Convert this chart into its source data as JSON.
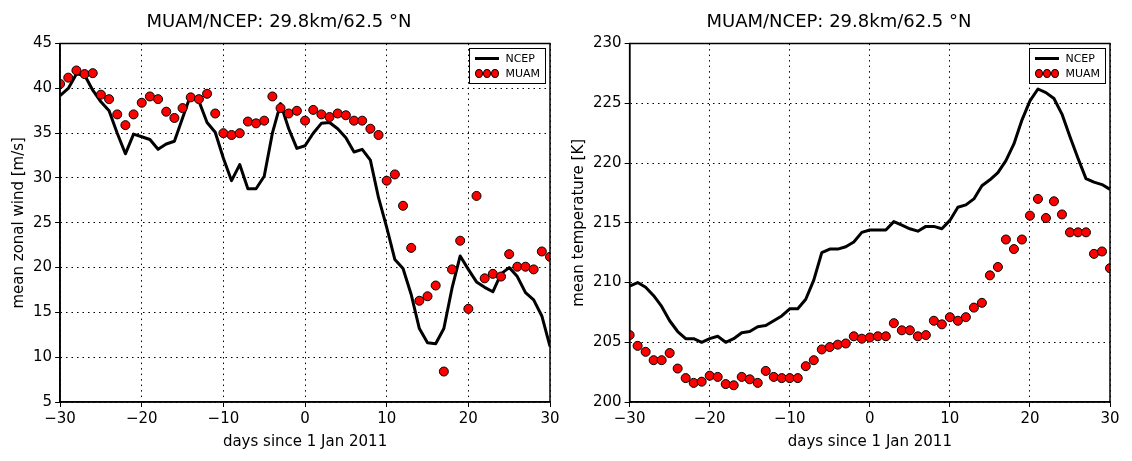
{
  "chart_data": [
    {
      "type": "line",
      "title": "MUAM/NCEP: 29.8km/62.5 °N",
      "xlabel": "days since 1 Jan 2011",
      "ylabel": "mean zonal wind [m/s]",
      "xlim": [
        -30,
        30
      ],
      "xticks": [
        {
          "value": -30,
          "label": "−30"
        },
        {
          "value": -20,
          "label": "−20"
        },
        {
          "value": -10,
          "label": "−10"
        },
        0,
        10,
        20,
        30
      ],
      "ylim": [
        5,
        45
      ],
      "yticks": [
        5,
        10,
        15,
        20,
        25,
        30,
        35,
        40,
        45
      ],
      "grid": true,
      "legend": "top right",
      "x": [
        -30,
        -29,
        -28,
        -27,
        -26,
        -25,
        -24,
        -23,
        -22,
        -21,
        -20,
        -19,
        -18,
        -17,
        -16,
        -15,
        -14,
        -13,
        -12,
        -11,
        -10,
        -9,
        -8,
        -7,
        -6,
        -5,
        -4,
        -3,
        -2,
        -1,
        0,
        1,
        2,
        3,
        4,
        5,
        6,
        7,
        8,
        9,
        10,
        11,
        12,
        13,
        14,
        15,
        16,
        17,
        18,
        19,
        20,
        21,
        22,
        23,
        24,
        25,
        26,
        27,
        28,
        29,
        30
      ],
      "series": [
        {
          "name": "NCEP",
          "type": "line",
          "line_style": "solid",
          "color": "#000000",
          "values": [
            39.2,
            40,
            41.6,
            41.5,
            39.8,
            38.5,
            37.5,
            35,
            32.7,
            34.9,
            34.6,
            34.3,
            33.2,
            33.8,
            34.1,
            36.7,
            39.3,
            38.6,
            36.2,
            35.1,
            32.2,
            29.7,
            31.5,
            28.8,
            28.8,
            30.2,
            35,
            38.3,
            35.5,
            33.3,
            33.6,
            35,
            36.1,
            36.2,
            35.5,
            34.5,
            32.9,
            33.2,
            32,
            27.8,
            24.5,
            20.9,
            19.9,
            17,
            13.2,
            11.6,
            11.5,
            13.2,
            17.7,
            21.3,
            19.8,
            18.4,
            17.8,
            17.3,
            19.3,
            20,
            19,
            17.2,
            16.4,
            14.6,
            11.2
          ]
        },
        {
          "name": "MUAM",
          "type": "scatter",
          "marker": "circle",
          "color": "#ff0000",
          "values": [
            40.5,
            41.2,
            42,
            41.6,
            41.7,
            39.3,
            38.8,
            37.1,
            35.9,
            37.1,
            38.4,
            39.1,
            38.8,
            37.4,
            36.7,
            37.8,
            39,
            38.8,
            39.4,
            37.2,
            35,
            34.8,
            35,
            36.3,
            36.1,
            36.4,
            39.1,
            37.8,
            37.2,
            37.5,
            36.4,
            37.6,
            37.1,
            36.8,
            37.2,
            37,
            36.4,
            36.4,
            35.5,
            34.8,
            29.7,
            30.4,
            26.9,
            22.2,
            16.3,
            16.8,
            18,
            8.4,
            19.8,
            23,
            15.4,
            28,
            18.8,
            19.3,
            19,
            21.5,
            20.1,
            20.1,
            19.8,
            21.8,
            21.2
          ]
        }
      ]
    },
    {
      "type": "line",
      "title": "MUAM/NCEP: 29.8km/62.5 °N",
      "xlabel": "days since 1 Jan 2011",
      "ylabel": "mean temperature [K]",
      "xlim": [
        -30,
        30
      ],
      "xticks": [
        {
          "value": -30,
          "label": "−30"
        },
        {
          "value": -20,
          "label": "−20"
        },
        {
          "value": -10,
          "label": "−10"
        },
        0,
        10,
        20,
        30
      ],
      "ylim": [
        200,
        230
      ],
      "yticks": [
        200,
        205,
        210,
        215,
        220,
        225,
        230
      ],
      "grid": true,
      "legend": "top right",
      "x": [
        -30,
        -29,
        -28,
        -27,
        -26,
        -25,
        -24,
        -23,
        -22,
        -21,
        -20,
        -19,
        -18,
        -17,
        -16,
        -15,
        -14,
        -13,
        -12,
        -11,
        -10,
        -9,
        -8,
        -7,
        -6,
        -5,
        -4,
        -3,
        -2,
        -1,
        0,
        1,
        2,
        3,
        4,
        5,
        6,
        7,
        8,
        9,
        10,
        11,
        12,
        13,
        14,
        15,
        16,
        17,
        18,
        19,
        20,
        21,
        22,
        23,
        24,
        25,
        26,
        27,
        28,
        29,
        30
      ],
      "series": [
        {
          "name": "NCEP",
          "type": "line",
          "line_style": "solid",
          "color": "#000000",
          "values": [
            209.7,
            210,
            209.6,
            208.9,
            208,
            206.8,
            205.9,
            205.3,
            205.3,
            205,
            205.3,
            205.5,
            205,
            205.3,
            205.8,
            205.9,
            206.3,
            206.4,
            206.8,
            207.2,
            207.8,
            207.8,
            208.6,
            210.2,
            212.5,
            212.8,
            212.8,
            213,
            213.4,
            214.2,
            214.4,
            214.4,
            214.4,
            215.1,
            214.8,
            214.5,
            214.3,
            214.7,
            214.7,
            214.5,
            215.2,
            216.3,
            216.5,
            217,
            218.1,
            218.6,
            219.2,
            220.2,
            221.6,
            223.6,
            225.2,
            226.2,
            225.9,
            225.4,
            224.1,
            222.2,
            220.4,
            218.7,
            218.4,
            218.2,
            217.8
          ]
        },
        {
          "name": "MUAM",
          "type": "scatter",
          "marker": "circle",
          "color": "#ff0000",
          "values": [
            205.6,
            204.7,
            204.2,
            203.5,
            203.5,
            204.1,
            202.8,
            202,
            201.6,
            201.7,
            202.2,
            202.1,
            201.5,
            201.4,
            202.1,
            201.9,
            201.6,
            202.6,
            202.1,
            202,
            202,
            202,
            203,
            203.5,
            204.4,
            204.6,
            204.8,
            204.9,
            205.5,
            205.3,
            205.4,
            205.5,
            205.5,
            206.6,
            206,
            206,
            205.5,
            205.6,
            206.8,
            206.5,
            207.1,
            206.8,
            207.1,
            207.9,
            208.3,
            210.6,
            211.3,
            213.6,
            212.8,
            213.6,
            215.6,
            217,
            215.4,
            216.8,
            215.7,
            214.2,
            214.2,
            214.2,
            212.4,
            212.6,
            211.2
          ]
        }
      ]
    }
  ]
}
